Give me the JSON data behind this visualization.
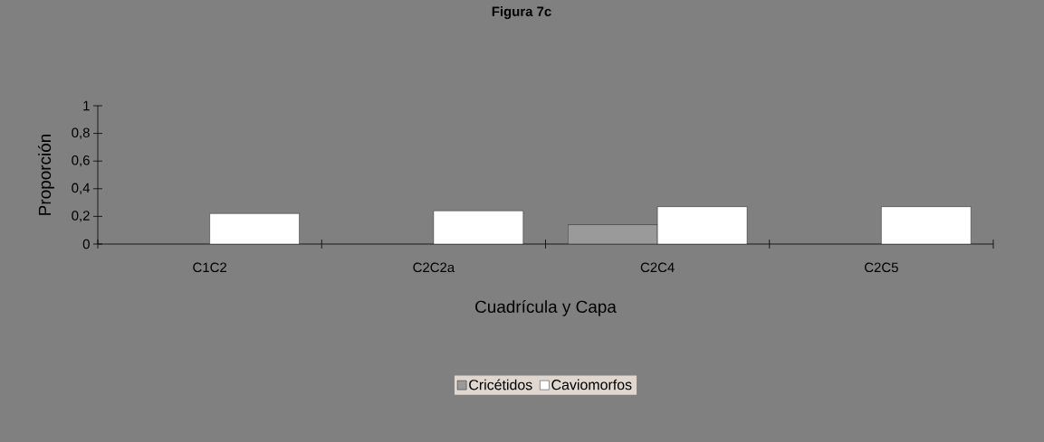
{
  "chart_data": {
    "type": "bar",
    "title": "Figura 7c",
    "xlabel": "Cuadrícula y Capa",
    "ylabel": "Proporción",
    "categories": [
      "C1C2",
      "C2C2a",
      "C2C4",
      "C2C5"
    ],
    "series": [
      {
        "name": "Cricétidos",
        "color": "#9a9a9a",
        "values": [
          null,
          null,
          0.14,
          null
        ]
      },
      {
        "name": "Caviomorfos",
        "color": "#ffffff",
        "values": [
          0.22,
          0.24,
          0.27,
          0.27
        ]
      }
    ],
    "ylim": [
      0,
      1
    ],
    "yticks": [
      0,
      {
        "value": 0.2,
        "label": "0,2"
      },
      {
        "value": 0.4,
        "label": "0,4"
      },
      {
        "value": 0.6,
        "label": "0,6"
      },
      {
        "value": 0.8,
        "label": "0,8"
      },
      1
    ],
    "grid": false,
    "legend": "bottom"
  }
}
